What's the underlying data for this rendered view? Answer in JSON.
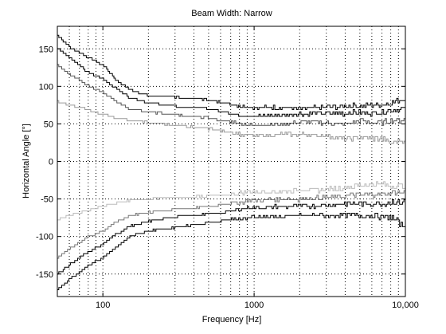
{
  "chart_data": {
    "type": "line",
    "title": "Beam Width: Narrow",
    "xlabel": "Frequency [Hz]",
    "ylabel": "Horizontal Angle [°]",
    "x_scale": "log",
    "xlim": [
      50,
      10000
    ],
    "ylim": [
      -180,
      180
    ],
    "grid": true,
    "legend": "none",
    "xticks": [
      100,
      1000,
      10000
    ],
    "xtick_labels": [
      "100",
      "1000",
      "10,000"
    ],
    "yticks": [
      150,
      100,
      50,
      0,
      -50,
      -100,
      -150
    ],
    "ytick_labels": [
      "150",
      "100",
      "50",
      "0",
      "-50",
      "-100",
      "-150"
    ],
    "x": [
      50,
      60,
      70,
      80,
      100,
      120,
      150,
      200,
      300,
      500,
      700,
      800,
      1000,
      1500,
      2000,
      3000,
      4000,
      5000,
      6000,
      7000,
      8000,
      10000
    ],
    "series": [
      {
        "color": "#000000",
        "upper": [
          168,
          152,
          145,
          138,
          128,
          110,
          95,
          88,
          86,
          82,
          76,
          74,
          72,
          72,
          70,
          72,
          74,
          74,
          75,
          76,
          78,
          84
        ]
      },
      {
        "color": "#000000",
        "upper": [
          150,
          138,
          128,
          118,
          110,
          98,
          85,
          78,
          74,
          70,
          64,
          62,
          60,
          62,
          64,
          64,
          64,
          66,
          64,
          66,
          68,
          70
        ]
      },
      {
        "color": "#555555",
        "upper": [
          128,
          116,
          108,
          100,
          92,
          80,
          70,
          66,
          62,
          58,
          52,
          51,
          48,
          50,
          52,
          52,
          50,
          54,
          52,
          52,
          54,
          56
        ]
      },
      {
        "color": "#999999",
        "upper": [
          80,
          75,
          72,
          68,
          63,
          58,
          54,
          52,
          48,
          44,
          38,
          36,
          34,
          36,
          36,
          34,
          30,
          32,
          30,
          30,
          25,
          30
        ]
      },
      {
        "color": "#bbbbbb",
        "lower": [
          -78,
          -72,
          -68,
          -65,
          -60,
          -56,
          -52,
          -50,
          -48,
          -46,
          -44,
          -42,
          -40,
          -40,
          -38,
          -38,
          -34,
          -32,
          -30,
          -30,
          -32,
          -32
        ]
      },
      {
        "color": "#777777",
        "lower": [
          -128,
          -116,
          -108,
          -100,
          -92,
          -82,
          -72,
          -68,
          -64,
          -60,
          -56,
          -55,
          -52,
          -50,
          -50,
          -48,
          -46,
          -44,
          -44,
          -44,
          -42,
          -42
        ]
      },
      {
        "color": "#000000",
        "lower": [
          -150,
          -138,
          -128,
          -120,
          -110,
          -98,
          -86,
          -80,
          -74,
          -70,
          -66,
          -64,
          -62,
          -60,
          -60,
          -58,
          -56,
          -56,
          -56,
          -56,
          -54,
          -54
        ]
      },
      {
        "color": "#000000",
        "lower": [
          -170,
          -157,
          -148,
          -138,
          -128,
          -115,
          -100,
          -92,
          -88,
          -82,
          -78,
          -76,
          -74,
          -74,
          -72,
          -72,
          -72,
          -72,
          -72,
          -74,
          -74,
          -88
        ]
      }
    ]
  }
}
